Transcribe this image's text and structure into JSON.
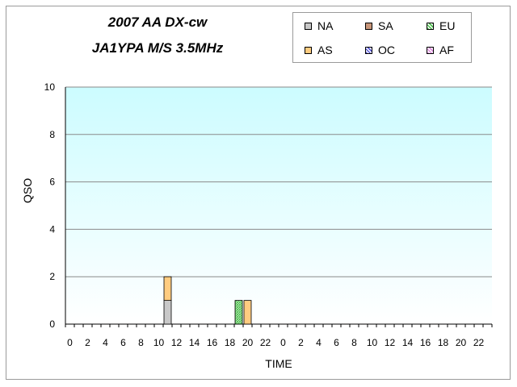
{
  "chart_data": {
    "type": "bar",
    "stacked": true,
    "title": "2007 AA DX-cw",
    "subtitle": "JA1YPA  M/S  3.5MHz",
    "xlabel": "TIME",
    "ylabel": "QSO",
    "ylim": [
      0,
      10
    ],
    "yticks": [
      "0",
      "2",
      "4",
      "6",
      "8",
      "10"
    ],
    "grid": true,
    "legend_position": "top-right",
    "categories": [
      "0",
      "1",
      "2",
      "3",
      "4",
      "5",
      "6",
      "7",
      "8",
      "9",
      "10",
      "11",
      "12",
      "13",
      "14",
      "15",
      "16",
      "17",
      "18",
      "19",
      "20",
      "21",
      "22",
      "23",
      "0",
      "1",
      "2",
      "3",
      "4",
      "5",
      "6",
      "7",
      "8",
      "9",
      "10",
      "11",
      "12",
      "13",
      "14",
      "15",
      "16",
      "17",
      "18",
      "19",
      "20",
      "21",
      "22",
      "23"
    ],
    "tick_labels": [
      "0",
      "2",
      "4",
      "6",
      "8",
      "10",
      "12",
      "14",
      "16",
      "18",
      "20",
      "22",
      "0",
      "2",
      "4",
      "6",
      "8",
      "10",
      "12",
      "14",
      "16",
      "18",
      "20",
      "22"
    ],
    "series": [
      {
        "name": "NA",
        "color": "#c8c8c8",
        "values": [
          0,
          0,
          0,
          0,
          0,
          0,
          0,
          0,
          0,
          0,
          0,
          1,
          0,
          0,
          0,
          0,
          0,
          0,
          0,
          0,
          0,
          0,
          0,
          0,
          0,
          0,
          0,
          0,
          0,
          0,
          0,
          0,
          0,
          0,
          0,
          0,
          0,
          0,
          0,
          0,
          0,
          0,
          0,
          0,
          0,
          0,
          0,
          0
        ]
      },
      {
        "name": "SA",
        "color": "#c8967a",
        "values": [
          0,
          0,
          0,
          0,
          0,
          0,
          0,
          0,
          0,
          0,
          0,
          0,
          0,
          0,
          0,
          0,
          0,
          0,
          0,
          0,
          0,
          0,
          0,
          0,
          0,
          0,
          0,
          0,
          0,
          0,
          0,
          0,
          0,
          0,
          0,
          0,
          0,
          0,
          0,
          0,
          0,
          0,
          0,
          0,
          0,
          0,
          0,
          0
        ]
      },
      {
        "name": "EU",
        "color": "#4cc04c",
        "values": [
          0,
          0,
          0,
          0,
          0,
          0,
          0,
          0,
          0,
          0,
          0,
          0,
          0,
          0,
          0,
          0,
          0,
          0,
          0,
          1,
          0,
          0,
          0,
          0,
          0,
          0,
          0,
          0,
          0,
          0,
          0,
          0,
          0,
          0,
          0,
          0,
          0,
          0,
          0,
          0,
          0,
          0,
          0,
          0,
          0,
          0,
          0,
          0
        ]
      },
      {
        "name": "AS",
        "color": "#ffcc80",
        "values": [
          0,
          0,
          0,
          0,
          0,
          0,
          0,
          0,
          0,
          0,
          0,
          1,
          0,
          0,
          0,
          0,
          0,
          0,
          0,
          0,
          1,
          0,
          0,
          0,
          0,
          0,
          0,
          0,
          0,
          0,
          0,
          0,
          0,
          0,
          0,
          0,
          0,
          0,
          0,
          0,
          0,
          0,
          0,
          0,
          0,
          0,
          0,
          0
        ]
      },
      {
        "name": "OC",
        "color": "#5858d8",
        "values": [
          0,
          0,
          0,
          0,
          0,
          0,
          0,
          0,
          0,
          0,
          0,
          0,
          0,
          0,
          0,
          0,
          0,
          0,
          0,
          0,
          0,
          0,
          0,
          0,
          0,
          0,
          0,
          0,
          0,
          0,
          0,
          0,
          0,
          0,
          0,
          0,
          0,
          0,
          0,
          0,
          0,
          0,
          0,
          0,
          0,
          0,
          0,
          0
        ]
      },
      {
        "name": "AF",
        "color": "#e08ce0",
        "values": [
          0,
          0,
          0,
          0,
          0,
          0,
          0,
          0,
          0,
          0,
          0,
          0,
          0,
          0,
          0,
          0,
          0,
          0,
          0,
          0,
          0,
          0,
          0,
          0,
          0,
          0,
          0,
          0,
          0,
          0,
          0,
          0,
          0,
          0,
          0,
          0,
          0,
          0,
          0,
          0,
          0,
          0,
          0,
          0,
          0,
          0,
          0,
          0
        ]
      }
    ],
    "plot_background": [
      "#ccfcff",
      "#ffffff"
    ]
  }
}
